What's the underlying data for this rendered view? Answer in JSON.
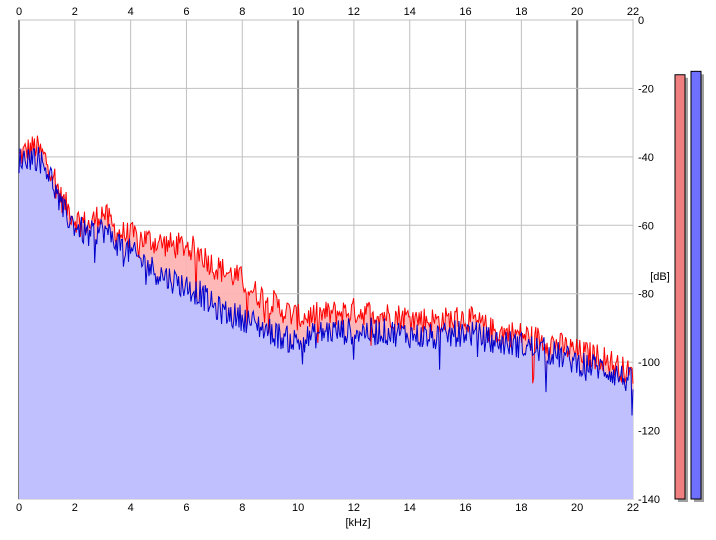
{
  "chart_data": {
    "type": "area",
    "title": "",
    "xlabel": "[kHz]",
    "ylabel": "[dB]",
    "xlim": [
      0,
      22
    ],
    "ylim": [
      -140,
      0
    ],
    "x_ticks": [
      0,
      2,
      4,
      6,
      8,
      10,
      12,
      14,
      16,
      18,
      20,
      22
    ],
    "x_tick_labels": [
      "0",
      "2",
      "4",
      "6",
      "8",
      "10",
      "12",
      "14",
      "16",
      "18",
      "20",
      "22"
    ],
    "y_ticks": [
      0,
      -20,
      -40,
      -60,
      -80,
      -100,
      -120,
      -140
    ],
    "y_tick_labels": [
      "0",
      "-20",
      "-40",
      "-60",
      "-80",
      "-100",
      "-120",
      "-140"
    ],
    "grid": true,
    "series": [
      {
        "color": "#ff0000",
        "x": [
          0,
          0.3,
          0.6,
          0.9,
          1.2,
          1.5,
          2,
          2.5,
          3,
          3.5,
          4,
          4.5,
          5,
          5.5,
          6,
          6.5,
          7,
          7.5,
          8,
          8.5,
          9,
          9.5,
          10,
          11,
          12,
          13,
          14,
          15,
          16,
          17,
          18,
          19,
          20,
          21,
          22
        ],
        "values": [
          -40,
          -38,
          -37,
          -40,
          -44,
          -52,
          -58,
          -60,
          -56,
          -62,
          -63,
          -64,
          -65,
          -66,
          -66,
          -68,
          -72,
          -74,
          -76,
          -80,
          -82,
          -85,
          -87,
          -86,
          -85,
          -86,
          -87,
          -88,
          -87,
          -91,
          -92,
          -94,
          -97,
          -99,
          -104
        ]
      },
      {
        "color": "#0000cc",
        "x": [
          0,
          0.3,
          0.6,
          0.9,
          1.2,
          1.5,
          2,
          2.5,
          3,
          3.5,
          4,
          4.5,
          5,
          5.5,
          6,
          6.5,
          7,
          7.5,
          8,
          8.5,
          9,
          9.5,
          10,
          11,
          12,
          13,
          14,
          15,
          16,
          17,
          18,
          19,
          20,
          21,
          22
        ],
        "values": [
          -41,
          -40,
          -40,
          -42,
          -47,
          -55,
          -60,
          -63,
          -61,
          -65,
          -68,
          -71,
          -74,
          -76,
          -78,
          -80,
          -84,
          -86,
          -87,
          -89,
          -91,
          -93,
          -94,
          -91,
          -91,
          -91,
          -92,
          -93,
          -91,
          -94,
          -95,
          -97,
          -100,
          -102,
          -106
        ]
      }
    ],
    "level_meters": [
      {
        "color": "#f08080",
        "level_db": -16
      },
      {
        "color": "#7070ff",
        "level_db": -15
      }
    ]
  }
}
